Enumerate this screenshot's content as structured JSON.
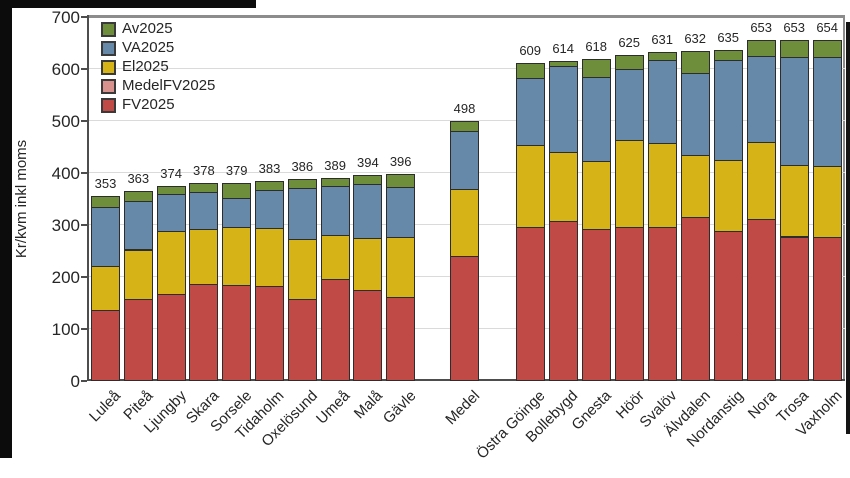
{
  "chart_data": {
    "type": "stacked-bar",
    "title": "",
    "ylabel": "Kr/kvm inkl moms",
    "ylim": [
      0,
      700
    ],
    "yticks": [
      0,
      100,
      200,
      300,
      400,
      500,
      600,
      700
    ],
    "grid": true,
    "legend_position": "top-left",
    "legend": [
      {
        "name": "Av2025",
        "color": "#6f8e3b"
      },
      {
        "name": "VA2025",
        "color": "#6689a9"
      },
      {
        "name": "El2025",
        "color": "#d6b417"
      },
      {
        "name": "MedelFV2025",
        "color": "#d9918e"
      },
      {
        "name": "FV2025",
        "color": "#c04a46"
      }
    ],
    "stack_order_bottom_to_top": [
      "FV2025",
      "El2025",
      "VA2025",
      "Av2025"
    ],
    "groups": [
      {
        "name": "cheapest-ten",
        "bars": [
          {
            "label": "Luleå",
            "total": 353,
            "FV2025": 135,
            "El2025": 84,
            "VA2025": 114,
            "Av2025": 20
          },
          {
            "label": "Piteå",
            "total": 363,
            "FV2025": 156,
            "El2025": 95,
            "VA2025": 93,
            "Av2025": 19
          },
          {
            "label": "Ljungby",
            "total": 374,
            "FV2025": 165,
            "El2025": 122,
            "VA2025": 71,
            "Av2025": 16
          },
          {
            "label": "Skara",
            "total": 378,
            "FV2025": 184,
            "El2025": 106,
            "VA2025": 71,
            "Av2025": 17
          },
          {
            "label": "Sorsele",
            "total": 379,
            "FV2025": 182,
            "El2025": 112,
            "VA2025": 56,
            "Av2025": 29
          },
          {
            "label": "Tidaholm",
            "total": 383,
            "FV2025": 180,
            "El2025": 112,
            "VA2025": 73,
            "Av2025": 18
          },
          {
            "label": "Oxelösund",
            "total": 386,
            "FV2025": 155,
            "El2025": 116,
            "VA2025": 98,
            "Av2025": 17
          },
          {
            "label": "Umeå",
            "total": 389,
            "FV2025": 194,
            "El2025": 84,
            "VA2025": 95,
            "Av2025": 16
          },
          {
            "label": "Malå",
            "total": 394,
            "FV2025": 174,
            "El2025": 100,
            "VA2025": 103,
            "Av2025": 17
          },
          {
            "label": "Gävle",
            "total": 396,
            "FV2025": 159,
            "El2025": 116,
            "VA2025": 97,
            "Av2025": 24
          }
        ]
      },
      {
        "name": "average",
        "bars": [
          {
            "label": "Medel",
            "total": 498,
            "FV2025": 238,
            "El2025": 130,
            "VA2025": 110,
            "Av2025": 20
          }
        ]
      },
      {
        "name": "most-expensive-ten",
        "bars": [
          {
            "label": "Östra Göinge",
            "total": 609,
            "FV2025": 294,
            "El2025": 158,
            "VA2025": 128,
            "Av2025": 29
          },
          {
            "label": "Bollebygd",
            "total": 614,
            "FV2025": 305,
            "El2025": 133,
            "VA2025": 166,
            "Av2025": 10
          },
          {
            "label": "Gnesta",
            "total": 618,
            "FV2025": 290,
            "El2025": 132,
            "VA2025": 160,
            "Av2025": 36
          },
          {
            "label": "Höör",
            "total": 625,
            "FV2025": 295,
            "El2025": 166,
            "VA2025": 138,
            "Av2025": 26
          },
          {
            "label": "Svalöv",
            "total": 631,
            "FV2025": 294,
            "El2025": 161,
            "VA2025": 161,
            "Av2025": 15
          },
          {
            "label": "Älvdalen",
            "total": 632,
            "FV2025": 313,
            "El2025": 119,
            "VA2025": 158,
            "Av2025": 42
          },
          {
            "label": "Nordanstig",
            "total": 635,
            "FV2025": 287,
            "El2025": 136,
            "VA2025": 192,
            "Av2025": 20
          },
          {
            "label": "Nora",
            "total": 653,
            "FV2025": 310,
            "El2025": 148,
            "VA2025": 165,
            "Av2025": 30
          },
          {
            "label": "Trosa",
            "total": 653,
            "FV2025": 276,
            "El2025": 137,
            "VA2025": 208,
            "Av2025": 32
          },
          {
            "label": "Vaxholm",
            "total": 654,
            "FV2025": 275,
            "El2025": 137,
            "VA2025": 209,
            "Av2025": 33
          }
        ]
      }
    ]
  }
}
